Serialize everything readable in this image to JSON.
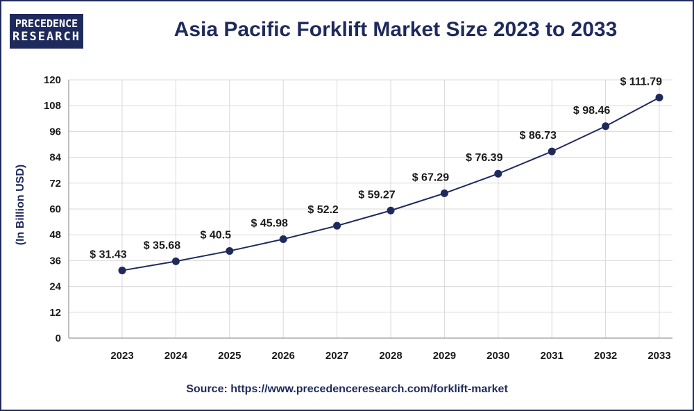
{
  "logo": {
    "line1": "PRECEDENCE",
    "line2": "RESEARCH"
  },
  "chart_data": {
    "type": "line",
    "title": "Asia Pacific Forklift Market Size 2023 to 2033",
    "xlabel": "",
    "ylabel": "(In Billion USD)",
    "categories": [
      "2023",
      "2024",
      "2025",
      "2026",
      "2027",
      "2028",
      "2029",
      "2030",
      "2031",
      "2032",
      "2033"
    ],
    "series": [
      {
        "values": [
          31.43,
          35.68,
          40.5,
          45.98,
          52.2,
          59.27,
          67.29,
          76.39,
          86.73,
          98.46,
          111.79
        ],
        "labels": [
          "$ 31.43",
          "$ 35.68",
          "$ 40.5",
          "$ 45.98",
          "$ 52.2",
          "$ 59.27",
          "$ 67.29",
          "$ 76.39",
          "$ 86.73",
          "$ 98.46",
          "$ 111.79"
        ]
      }
    ],
    "ylim": [
      0,
      120
    ],
    "yticks": [
      0,
      12,
      24,
      36,
      48,
      60,
      72,
      84,
      96,
      108,
      120
    ],
    "grid": true,
    "line_color": "#1f2a5c",
    "grid_color": "#d9d9d9"
  },
  "source": "Source: https://www.precedenceresearch.com/forklift-market"
}
